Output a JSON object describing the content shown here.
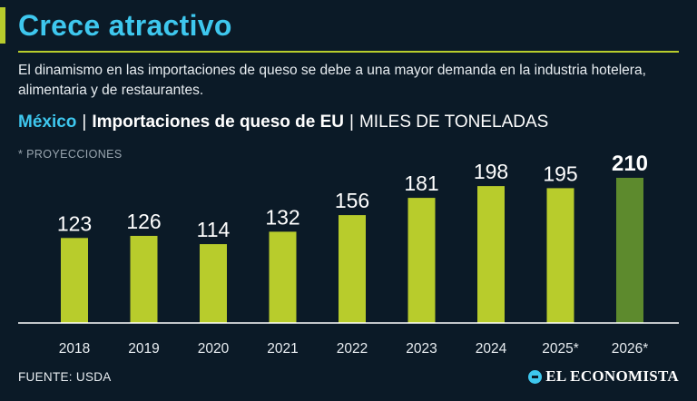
{
  "header": {
    "title": "Crece atractivo",
    "subtitle": "El dinamismo en las importaciones de queso se debe a una mayor demanda en la industria hotelera, alimentaria y de restaurantes.",
    "country": "México",
    "separator": "|",
    "chart_title": "Importaciones de queso de EU",
    "unit": "MILES DE TONELADAS",
    "note": "* PROYECCIONES"
  },
  "footer": {
    "source": "FUENTE: USDA",
    "brand": "EL ECONOMISTA"
  },
  "colors": {
    "title": "#3ec7ee",
    "accent": "#b8cc2c",
    "bar": "#b8cc2c",
    "highlight_bar": "#5d8a2d",
    "background": "#0b1a27"
  },
  "chart_data": {
    "type": "bar",
    "title": "Importaciones de queso de EU",
    "ylabel": "MILES DE TONELADAS",
    "categories": [
      "2018",
      "2019",
      "2020",
      "2021",
      "2022",
      "2023",
      "2024",
      "2025*",
      "2026*"
    ],
    "values": [
      123,
      126,
      114,
      132,
      156,
      181,
      198,
      195,
      210
    ],
    "labels": [
      "123",
      "126",
      "114",
      "132",
      "156",
      "181",
      "198",
      "195",
      "210"
    ],
    "highlight_index": 8,
    "ylim": [
      0,
      210
    ],
    "grid": false,
    "legend": "none"
  }
}
